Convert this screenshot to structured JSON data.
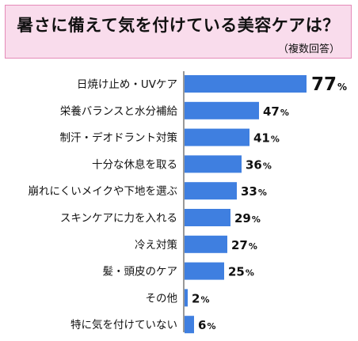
{
  "title": "暑さに備えて気を付けている美容ケアは？",
  "subtitle": "（複数回答）",
  "colors": {
    "bar": "#3f7fe0",
    "title_bg": "#f9dcec",
    "title_border": "#e58ab8",
    "axis": "#555555",
    "text": "#111111"
  },
  "chart_data": {
    "type": "bar",
    "orientation": "horizontal",
    "title": "暑さに備えて気を付けている美容ケアは？",
    "subtitle": "（複数回答）",
    "categories": [
      "日焼け止め・UVケア",
      "栄養バランスと水分補給",
      "制汗・デオドラント対策",
      "十分な休息を取る",
      "崩れにくいメイクや下地を選ぶ",
      "スキンケアに力を入れる",
      "冷え対策",
      "髪・頭皮のケア",
      "その他",
      "特に気を付けていない"
    ],
    "values": [
      77,
      47,
      41,
      36,
      33,
      29,
      27,
      25,
      2,
      6
    ],
    "value_suffix": "%",
    "xlim": [
      0,
      100
    ],
    "grid": false,
    "legend": "none"
  }
}
